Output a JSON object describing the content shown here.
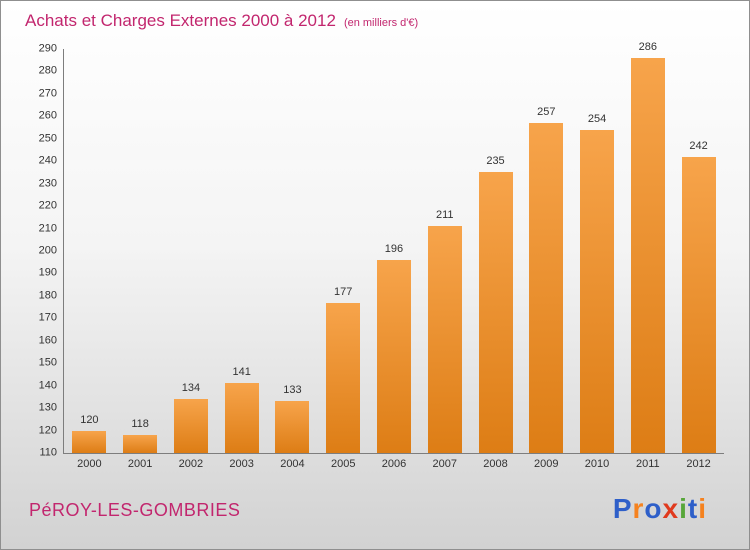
{
  "header": {
    "title": "Achats et Charges Externes 2000 à 2012",
    "subtitle": "(en milliers d'€)"
  },
  "chart_data": {
    "type": "bar",
    "categories": [
      "2000",
      "2001",
      "2002",
      "2003",
      "2004",
      "2005",
      "2006",
      "2007",
      "2008",
      "2009",
      "2010",
      "2011",
      "2012"
    ],
    "values": [
      120,
      118,
      134,
      141,
      133,
      177,
      196,
      211,
      235,
      257,
      254,
      286,
      242
    ],
    "title": "Achats et Charges Externes 2000 à 2012",
    "subtitle": "(en milliers d'€)",
    "xlabel": "",
    "ylabel": "",
    "ylim": [
      110,
      290
    ],
    "ytick_step": 10,
    "grid": false,
    "legend": false,
    "bar_color_top": "#f7a44b",
    "bar_color_bottom": "#dd7d15"
  },
  "footer": {
    "company": "PéROY-LES-GOMBRIES",
    "logo_letters": [
      {
        "ch": "P",
        "color": "#2e5fc9"
      },
      {
        "ch": "r",
        "color": "#f5821f"
      },
      {
        "ch": "o",
        "color": "#2e5fc9"
      },
      {
        "ch": "x",
        "color": "#e03a1e"
      },
      {
        "ch": "i",
        "color": "#57a639"
      },
      {
        "ch": "t",
        "color": "#2e5fc9"
      },
      {
        "ch": "i",
        "color": "#f5821f"
      }
    ]
  },
  "colors": {
    "accent": "#c2266e",
    "axis": "#7d7d7d",
    "text": "#333333"
  }
}
